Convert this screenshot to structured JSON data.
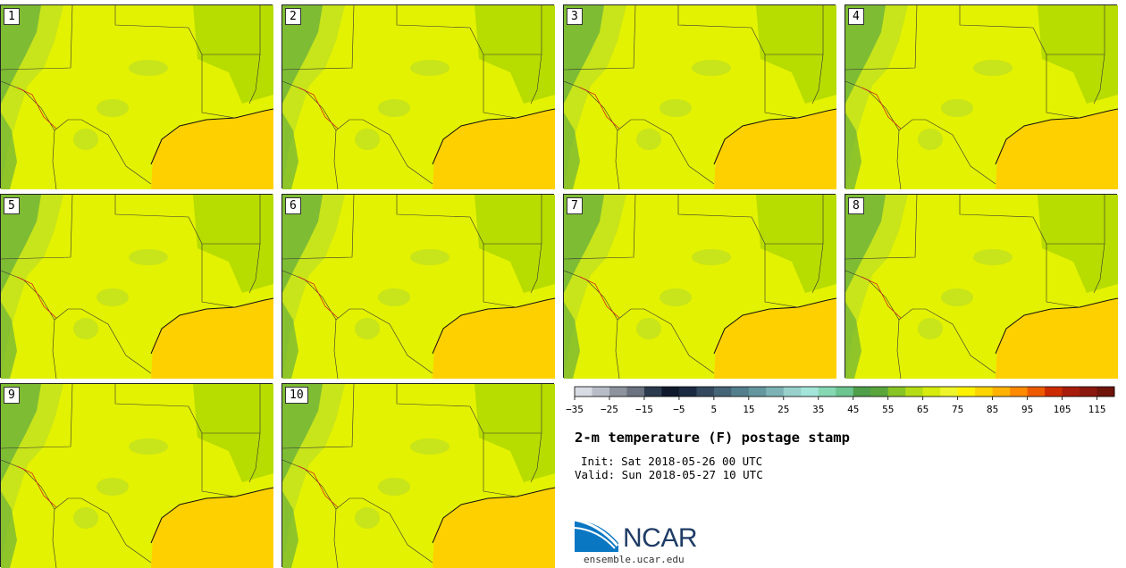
{
  "members": [
    {
      "label": "1"
    },
    {
      "label": "2"
    },
    {
      "label": "3"
    },
    {
      "label": "4"
    },
    {
      "label": "5"
    },
    {
      "label": "6"
    },
    {
      "label": "7"
    },
    {
      "label": "8"
    },
    {
      "label": "9"
    },
    {
      "label": "10"
    }
  ],
  "colorbar": {
    "ticks": [
      "−35",
      "−25",
      "−15",
      "−5",
      "5",
      "15",
      "25",
      "35",
      "45",
      "55",
      "65",
      "75",
      "85",
      "95",
      "105",
      "115"
    ],
    "colors": [
      "#d8dbe3",
      "#b8bcc6",
      "#8e939d",
      "#6b7280",
      "#2c3a4d",
      "#101a2c",
      "#1b2a40",
      "#34495e",
      "#456476",
      "#537f8c",
      "#64979e",
      "#7db3b4",
      "#98d1cb",
      "#a3e6d9",
      "#86d8b3",
      "#6cc48e",
      "#4f9e4a",
      "#5aa63c",
      "#88c424",
      "#b5dc14",
      "#d6ec0e",
      "#eef52a",
      "#fff200",
      "#ffd500",
      "#ffb300",
      "#ff8a00",
      "#ee5a00",
      "#cc2a00",
      "#a81c0e",
      "#8a180e",
      "#6e140a"
    ],
    "fill_colors": {
      "ocean": "#ffd000",
      "land": "#e3f200",
      "mid": "#c8e41a",
      "green": "#b7dc00",
      "dark": "#6cb23a"
    }
  },
  "title": "2-m temperature (F) postage stamp",
  "init": "Init: Sat 2018-05-26 00 UTC",
  "valid": "Valid: Sun 2018-05-27 10 UTC",
  "logo": {
    "text": "NCAR",
    "site": "ensemble.ucar.edu"
  }
}
